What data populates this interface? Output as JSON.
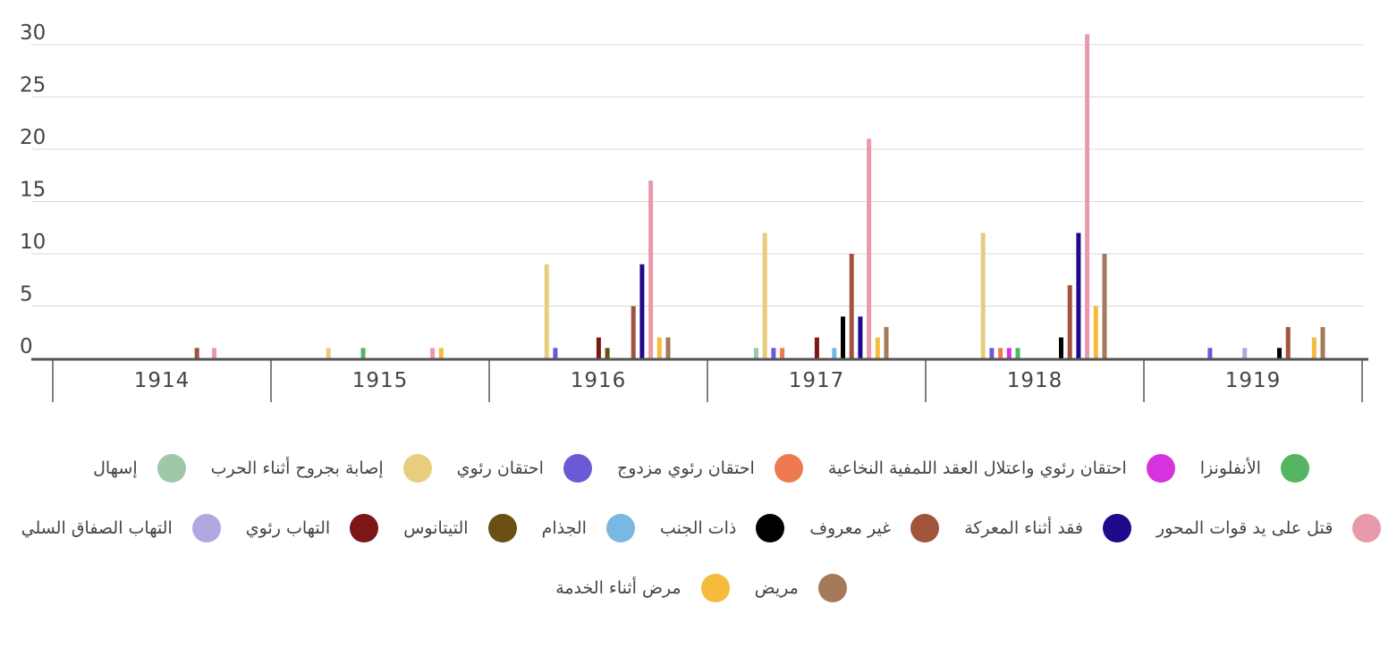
{
  "chart_data": {
    "type": "bar",
    "title": "",
    "xlabel": "",
    "ylabel": "",
    "ylim": [
      0,
      30
    ],
    "yticks": [
      "0",
      "5",
      "10",
      "15",
      "20",
      "25",
      "30"
    ],
    "categories": [
      "1914",
      "1915",
      "1916",
      "1917",
      "1918",
      "1919"
    ],
    "series": [
      {
        "name": "إسهال",
        "color": "#9ec8a8",
        "values": [
          0,
          0,
          0,
          1,
          0,
          0
        ]
      },
      {
        "name": "إصابة بجروح أثناء الحرب",
        "color": "#e8cd7e",
        "values": [
          0,
          1,
          9,
          12,
          12,
          0
        ]
      },
      {
        "name": "احتقان رئوي",
        "color": "#6a5ad6",
        "values": [
          0,
          0,
          1,
          1,
          1,
          1
        ]
      },
      {
        "name": "احتقان رئوي مزدوج",
        "color": "#ef7a50",
        "values": [
          0,
          0,
          0,
          1,
          1,
          0
        ]
      },
      {
        "name": "احتقان رئوي واعتلال العقد اللمفية النخاعية",
        "color": "#d633de",
        "values": [
          0,
          0,
          0,
          0,
          1,
          0
        ]
      },
      {
        "name": "الأنفلونزا",
        "color": "#55b563",
        "values": [
          0,
          1,
          0,
          0,
          1,
          0
        ]
      },
      {
        "name": "التهاب الصفاق السلي",
        "color": "#b1a8e2",
        "values": [
          0,
          0,
          0,
          0,
          0,
          1
        ]
      },
      {
        "name": "التهاب رئوي",
        "color": "#7d1616",
        "values": [
          0,
          0,
          2,
          2,
          0,
          0
        ]
      },
      {
        "name": "التيتانوس",
        "color": "#6b4f14",
        "values": [
          0,
          0,
          1,
          0,
          0,
          0
        ]
      },
      {
        "name": "الجذام",
        "color": "#78b8e2",
        "values": [
          0,
          0,
          0,
          1,
          0,
          0
        ]
      },
      {
        "name": "ذات الجنب",
        "color": "#000000",
        "values": [
          0,
          0,
          0,
          4,
          2,
          1
        ]
      },
      {
        "name": "غير معروف",
        "color": "#a0543c",
        "values": [
          1,
          0,
          5,
          10,
          7,
          3
        ]
      },
      {
        "name": "فقد أثناء المعركة",
        "color": "#1f0a8c",
        "values": [
          0,
          0,
          9,
          4,
          12,
          0
        ]
      },
      {
        "name": "قتل على يد قوات المحور",
        "color": "#e89aaa",
        "values": [
          1,
          1,
          17,
          21,
          31,
          0
        ]
      },
      {
        "name": "مرض أثناء الخدمة",
        "color": "#f5bb3d",
        "values": [
          0,
          1,
          2,
          2,
          5,
          2
        ]
      },
      {
        "name": "مريض",
        "color": "#a47a5a",
        "values": [
          0,
          0,
          2,
          3,
          10,
          3
        ]
      }
    ],
    "legend_position": "bottom",
    "grid": true
  },
  "legend": {
    "rows": [
      [
        {
          "label": "الأنفلونزا",
          "color": "#55b563"
        },
        {
          "label": "احتقان رئوي واعتلال العقد اللمفية النخاعية",
          "color": "#d633de"
        },
        {
          "label": "احتقان رئوي مزدوج",
          "color": "#ef7a50"
        },
        {
          "label": "احتقان رئوي",
          "color": "#6a5ad6"
        },
        {
          "label": "إصابة بجروح أثناء الحرب",
          "color": "#e8cd7e"
        },
        {
          "label": "إسهال",
          "color": "#9ec8a8"
        }
      ],
      [
        {
          "label": "قتل على يد قوات المحور",
          "color": "#e89aaa"
        },
        {
          "label": "فقد أثناء المعركة",
          "color": "#1f0a8c"
        },
        {
          "label": "غير معروف",
          "color": "#a0543c"
        },
        {
          "label": "ذات الجنب",
          "color": "#000000"
        },
        {
          "label": "الجذام",
          "color": "#78b8e2"
        },
        {
          "label": "التيتانوس",
          "color": "#6b4f14"
        },
        {
          "label": "التهاب رئوي",
          "color": "#7d1616"
        },
        {
          "label": "التهاب الصفاق السلي",
          "color": "#b1a8e2"
        }
      ],
      [
        {
          "label": "مريض",
          "color": "#a47a5a"
        },
        {
          "label": "مرض أثناء الخدمة",
          "color": "#f5bb3d"
        }
      ]
    ]
  }
}
